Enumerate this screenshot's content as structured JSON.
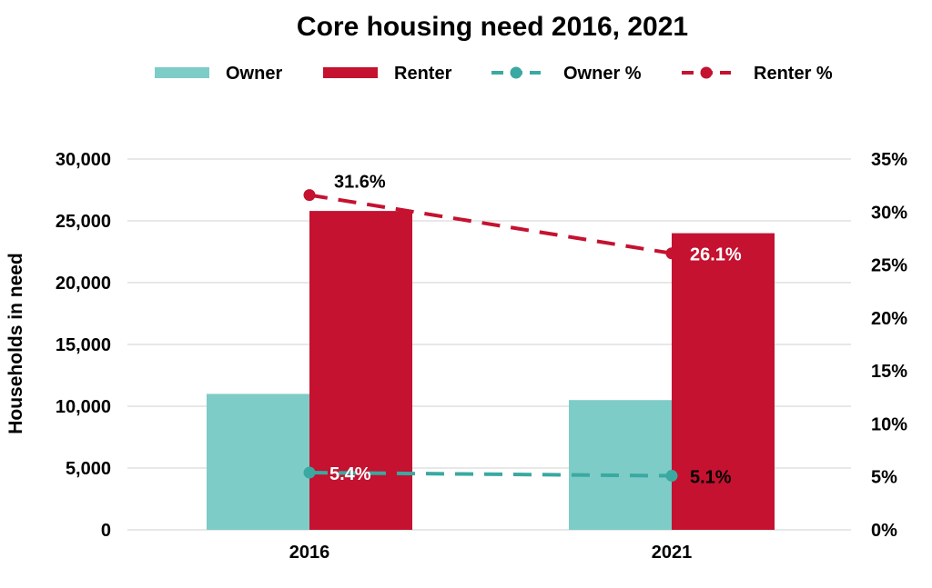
{
  "chart_data": {
    "type": "bar",
    "title": "Core housing need 2016, 2021",
    "ylabel": "Households in need",
    "xlabel": "",
    "categories": [
      "2016",
      "2021"
    ],
    "ylim": [
      0,
      30000
    ],
    "y_ticks": [
      0,
      5000,
      10000,
      15000,
      20000,
      25000,
      30000
    ],
    "y_tick_labels": [
      "0",
      "5,000",
      "10,000",
      "15,000",
      "20,000",
      "25,000",
      "30,000"
    ],
    "y2lim": [
      0,
      35
    ],
    "y2_ticks": [
      0,
      5,
      10,
      15,
      20,
      25,
      30,
      35
    ],
    "y2_tick_labels": [
      "0%",
      "5%",
      "10%",
      "15%",
      "20%",
      "25%",
      "30%",
      "35%"
    ],
    "grid": true,
    "legend_position": "top",
    "series": [
      {
        "name": "Owner",
        "kind": "bar",
        "axis": "left",
        "color": "#7ECCC7",
        "values": [
          11000,
          10500
        ]
      },
      {
        "name": "Renter",
        "kind": "bar",
        "axis": "left",
        "color": "#C41230",
        "values": [
          25800,
          24000
        ]
      },
      {
        "name": "Owner %",
        "kind": "line",
        "axis": "right",
        "color": "#3AA9A1",
        "values": [
          5.4,
          5.1
        ],
        "labels": [
          "5.4%",
          "5.1%"
        ]
      },
      {
        "name": "Renter %",
        "kind": "line",
        "axis": "right",
        "color": "#C41230",
        "values": [
          31.6,
          26.1
        ],
        "labels": [
          "31.6%",
          "26.1%"
        ]
      }
    ]
  }
}
